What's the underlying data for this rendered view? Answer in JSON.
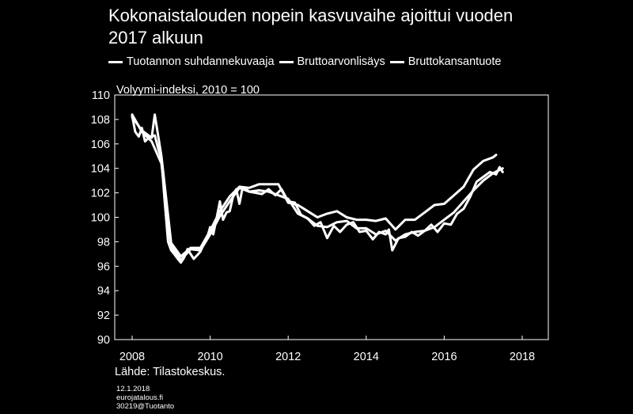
{
  "header": {
    "title_line1": "Kokonaistalouden nopein kasvuvaihe ajoittui vuoden",
    "title_line2": "2017 alkuun"
  },
  "source": "Lähde: Tilastokeskus.",
  "footer": {
    "date": "12.1.2018",
    "site": "eurojatalous.fi",
    "code": "30219@Tuotanto"
  },
  "colors": {
    "background": "#000000",
    "line": "#ffffff",
    "axis": "#ffffff"
  },
  "chart_data": {
    "type": "line",
    "title": "Kokonaistalouden nopein kasvuvaihe ajoittui vuoden 2017 alkuun",
    "ylabel": "Volyymi-indeksi, 2010 = 100",
    "xlim": [
      2008,
      2018
    ],
    "ylim": [
      90,
      110
    ],
    "x_ticks": [
      "2008",
      "2010",
      "2012",
      "2014",
      "2016",
      "2018"
    ],
    "y_ticks": [
      "90",
      "92",
      "94",
      "96",
      "98",
      "100",
      "102",
      "104",
      "106",
      "108",
      "110"
    ],
    "grid": false,
    "legend_position": "top",
    "series": [
      {
        "name": "Tuotannon suhdannekuvaaja",
        "points": [
          [
            2008.0,
            108.3
          ],
          [
            2008.08,
            107.0
          ],
          [
            2008.17,
            106.6
          ],
          [
            2008.25,
            107.3
          ],
          [
            2008.33,
            106.2
          ],
          [
            2008.42,
            106.5
          ],
          [
            2008.5,
            106.6
          ],
          [
            2008.58,
            106.7
          ],
          [
            2008.67,
            105.6
          ],
          [
            2008.75,
            104.8
          ],
          [
            2008.83,
            101.5
          ],
          [
            2008.92,
            98.0
          ],
          [
            2009.0,
            97.3
          ],
          [
            2009.08,
            97.0
          ],
          [
            2009.17,
            96.6
          ],
          [
            2009.25,
            96.3
          ],
          [
            2009.33,
            96.7
          ],
          [
            2009.42,
            97.4
          ],
          [
            2009.5,
            97.0
          ],
          [
            2009.58,
            96.6
          ],
          [
            2009.67,
            96.9
          ],
          [
            2009.75,
            97.2
          ],
          [
            2009.83,
            97.8
          ],
          [
            2009.92,
            98.3
          ],
          [
            2010.0,
            99.2
          ],
          [
            2010.08,
            98.6
          ],
          [
            2010.17,
            100.0
          ],
          [
            2010.25,
            101.3
          ],
          [
            2010.33,
            99.8
          ],
          [
            2010.42,
            100.4
          ],
          [
            2010.5,
            100.5
          ],
          [
            2010.58,
            101.6
          ],
          [
            2010.67,
            102.3
          ],
          [
            2010.75,
            101.1
          ],
          [
            2010.83,
            102.4
          ],
          [
            2010.92,
            102.3
          ],
          [
            2011.0,
            102.1
          ],
          [
            2011.17,
            102.0
          ],
          [
            2011.33,
            101.9
          ],
          [
            2011.5,
            102.3
          ],
          [
            2011.67,
            101.8
          ],
          [
            2011.83,
            102.3
          ],
          [
            2012.0,
            101.3
          ],
          [
            2012.17,
            101.2
          ],
          [
            2012.33,
            100.2
          ],
          [
            2012.5,
            99.9
          ],
          [
            2012.67,
            99.3
          ],
          [
            2012.83,
            99.6
          ],
          [
            2013.0,
            98.3
          ],
          [
            2013.17,
            99.3
          ],
          [
            2013.33,
            98.8
          ],
          [
            2013.5,
            99.4
          ],
          [
            2013.67,
            99.6
          ],
          [
            2013.83,
            98.8
          ],
          [
            2014.0,
            98.9
          ],
          [
            2014.17,
            98.2
          ],
          [
            2014.33,
            98.8
          ],
          [
            2014.5,
            98.6
          ],
          [
            2014.58,
            99.0
          ],
          [
            2014.67,
            97.3
          ],
          [
            2014.83,
            98.3
          ],
          [
            2015.0,
            98.4
          ],
          [
            2015.17,
            98.8
          ],
          [
            2015.33,
            98.5
          ],
          [
            2015.5,
            98.9
          ],
          [
            2015.67,
            99.4
          ],
          [
            2015.83,
            98.8
          ],
          [
            2016.0,
            99.5
          ],
          [
            2016.17,
            99.4
          ],
          [
            2016.33,
            100.3
          ],
          [
            2016.5,
            100.7
          ],
          [
            2016.67,
            101.7
          ],
          [
            2016.83,
            102.9
          ],
          [
            2017.0,
            103.3
          ],
          [
            2017.17,
            103.7
          ],
          [
            2017.33,
            103.5
          ],
          [
            2017.42,
            104.1
          ],
          [
            2017.5,
            103.7
          ]
        ]
      },
      {
        "name": "Bruttoarvonlisäys",
        "points": [
          [
            2008.0,
            108.4
          ],
          [
            2008.25,
            107.0
          ],
          [
            2008.5,
            106.2
          ],
          [
            2008.75,
            104.4
          ],
          [
            2009.0,
            97.6
          ],
          [
            2009.25,
            96.5
          ],
          [
            2009.5,
            97.4
          ],
          [
            2009.75,
            97.3
          ],
          [
            2010.0,
            98.6
          ],
          [
            2010.25,
            100.1
          ],
          [
            2010.5,
            101.3
          ],
          [
            2010.75,
            102.4
          ],
          [
            2011.0,
            102.1
          ],
          [
            2011.25,
            102.2
          ],
          [
            2011.5,
            102.1
          ],
          [
            2011.75,
            101.8
          ],
          [
            2012.0,
            101.5
          ],
          [
            2012.25,
            100.3
          ],
          [
            2012.5,
            99.9
          ],
          [
            2012.75,
            99.3
          ],
          [
            2013.0,
            99.2
          ],
          [
            2013.25,
            99.6
          ],
          [
            2013.5,
            99.7
          ],
          [
            2013.75,
            99.1
          ],
          [
            2014.0,
            99.1
          ],
          [
            2014.25,
            98.6
          ],
          [
            2014.5,
            98.9
          ],
          [
            2014.75,
            98.1
          ],
          [
            2015.0,
            98.6
          ],
          [
            2015.25,
            98.8
          ],
          [
            2015.5,
            98.9
          ],
          [
            2015.75,
            99.2
          ],
          [
            2016.0,
            99.8
          ],
          [
            2016.25,
            100.4
          ],
          [
            2016.5,
            101.3
          ],
          [
            2016.75,
            102.2
          ],
          [
            2017.0,
            103.0
          ],
          [
            2017.25,
            103.6
          ],
          [
            2017.5,
            104.0
          ]
        ]
      },
      {
        "name": "Bruttokansantuote",
        "points": [
          [
            2008.0,
            108.2
          ],
          [
            2008.25,
            107.1
          ],
          [
            2008.5,
            106.5
          ],
          [
            2008.58,
            108.4
          ],
          [
            2008.75,
            105.0
          ],
          [
            2009.0,
            97.9
          ],
          [
            2009.25,
            96.8
          ],
          [
            2009.5,
            97.5
          ],
          [
            2009.75,
            97.5
          ],
          [
            2010.0,
            98.9
          ],
          [
            2010.25,
            100.5
          ],
          [
            2010.5,
            101.7
          ],
          [
            2010.75,
            102.5
          ],
          [
            2011.0,
            102.4
          ],
          [
            2011.25,
            102.7
          ],
          [
            2011.5,
            102.7
          ],
          [
            2011.75,
            102.7
          ],
          [
            2012.0,
            101.2
          ],
          [
            2012.25,
            101.0
          ],
          [
            2012.5,
            100.5
          ],
          [
            2012.75,
            100.0
          ],
          [
            2013.0,
            100.3
          ],
          [
            2013.25,
            100.5
          ],
          [
            2013.5,
            100.0
          ],
          [
            2013.75,
            99.8
          ],
          [
            2014.0,
            99.8
          ],
          [
            2014.25,
            99.7
          ],
          [
            2014.5,
            99.9
          ],
          [
            2014.75,
            99.0
          ],
          [
            2015.0,
            99.8
          ],
          [
            2015.25,
            99.8
          ],
          [
            2015.5,
            100.4
          ],
          [
            2015.75,
            101.0
          ],
          [
            2016.0,
            101.1
          ],
          [
            2016.25,
            101.8
          ],
          [
            2016.5,
            102.5
          ],
          [
            2016.75,
            103.9
          ],
          [
            2017.0,
            104.6
          ],
          [
            2017.25,
            104.9
          ],
          [
            2017.33,
            105.1
          ]
        ]
      }
    ]
  }
}
